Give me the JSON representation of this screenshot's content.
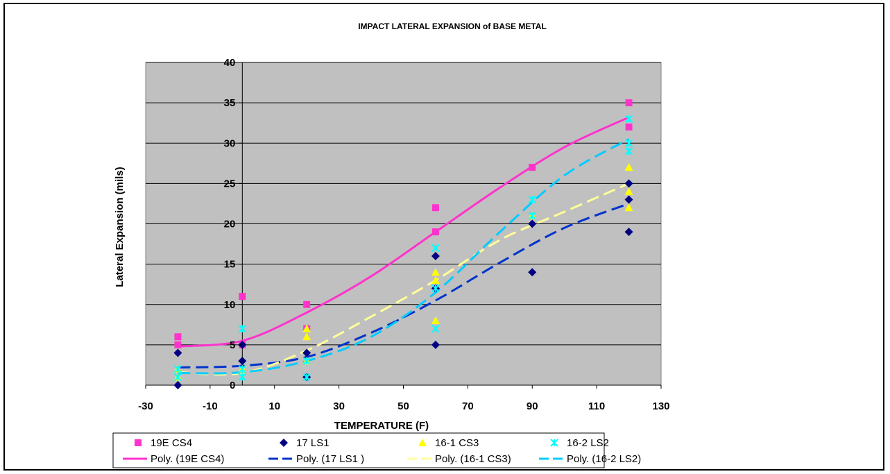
{
  "chart_data": {
    "type": "scatter",
    "title": "IMPACT LATERAL EXPANSION of  BASE METAL",
    "xlabel": "TEMPERATURE (F)",
    "ylabel": "Lateral Expansion (mils)",
    "xlim": [
      -30,
      130
    ],
    "ylim": [
      0,
      40
    ],
    "xticks": [
      -30,
      -10,
      10,
      30,
      50,
      70,
      90,
      110,
      130
    ],
    "xtick_labels": [
      "-30",
      "-10",
      "10",
      "30",
      "50",
      "70",
      "90",
      "110",
      "130"
    ],
    "yticks": [
      0,
      5,
      10,
      15,
      20,
      25,
      30,
      35,
      40
    ],
    "ytick_labels": [
      "0",
      "5",
      "10",
      "15",
      "20",
      "25",
      "30",
      "35",
      "40"
    ],
    "grid": "horizontal",
    "plot_background": "#c0c0c0",
    "legend_position": "bottom",
    "series": [
      {
        "name": "19E CS4",
        "marker": "square",
        "color": "#ff33cc",
        "x": [
          -20,
          -20,
          0,
          0,
          20,
          20,
          60,
          60,
          90,
          120,
          120
        ],
        "y": [
          6,
          5,
          11,
          5,
          10,
          7,
          22,
          19,
          27,
          35,
          32
        ]
      },
      {
        "name": "17 LS1",
        "marker": "diamond",
        "color": "#000080",
        "x": [
          -20,
          -20,
          0,
          0,
          20,
          20,
          60,
          60,
          60,
          90,
          90,
          120,
          120,
          120
        ],
        "y": [
          4,
          0,
          5,
          3,
          4,
          1,
          16,
          12,
          5,
          20,
          14,
          25,
          23,
          19
        ]
      },
      {
        "name": "16-1 CS3",
        "marker": "triangle",
        "color": "#ffff00",
        "x": [
          -20,
          -20,
          0,
          20,
          20,
          20,
          60,
          60,
          60,
          90,
          120,
          120,
          120
        ],
        "y": [
          2,
          1,
          2,
          7,
          6,
          3,
          14,
          13,
          8,
          21,
          27,
          24,
          22
        ]
      },
      {
        "name": "16-2 LS2",
        "marker": "star",
        "color": "#00ffff",
        "x": [
          -20,
          -20,
          0,
          0,
          0,
          20,
          20,
          60,
          60,
          60,
          90,
          90,
          120,
          120,
          120
        ],
        "y": [
          2,
          1,
          7,
          2,
          1,
          3,
          1,
          17,
          12,
          7,
          23,
          21,
          33,
          30,
          29
        ]
      }
    ],
    "trendlines": [
      {
        "name": "Poly. (19E CS4)",
        "style": "solid",
        "color": "#ff33cc",
        "x": [
          -20,
          0,
          20,
          40,
          60,
          80,
          100,
          120
        ],
        "y": [
          4.8,
          5.5,
          9.0,
          13.5,
          19.0,
          24.5,
          29.5,
          33.2
        ]
      },
      {
        "name": "Poly. (17 LS1 )",
        "style": "dash",
        "color": "#0033cc",
        "x": [
          -20,
          0,
          20,
          40,
          60,
          80,
          100,
          120
        ],
        "y": [
          2.2,
          2.4,
          3.5,
          6.5,
          10.5,
          15.2,
          19.5,
          22.5
        ]
      },
      {
        "name": "Poly. (16-1 CS3)",
        "style": "dash",
        "color": "#ffff99",
        "x": [
          -20,
          0,
          20,
          40,
          60,
          80,
          100,
          120
        ],
        "y": [
          1.6,
          1.5,
          4.3,
          8.5,
          13.0,
          18.0,
          21.5,
          25.0
        ]
      },
      {
        "name": "Poly. (16-2 LS2)",
        "style": "dash",
        "color": "#00ccff",
        "x": [
          -20,
          0,
          20,
          40,
          60,
          80,
          100,
          120
        ],
        "y": [
          1.5,
          1.6,
          3.0,
          6.0,
          11.5,
          19.0,
          26.0,
          30.5
        ]
      }
    ]
  }
}
